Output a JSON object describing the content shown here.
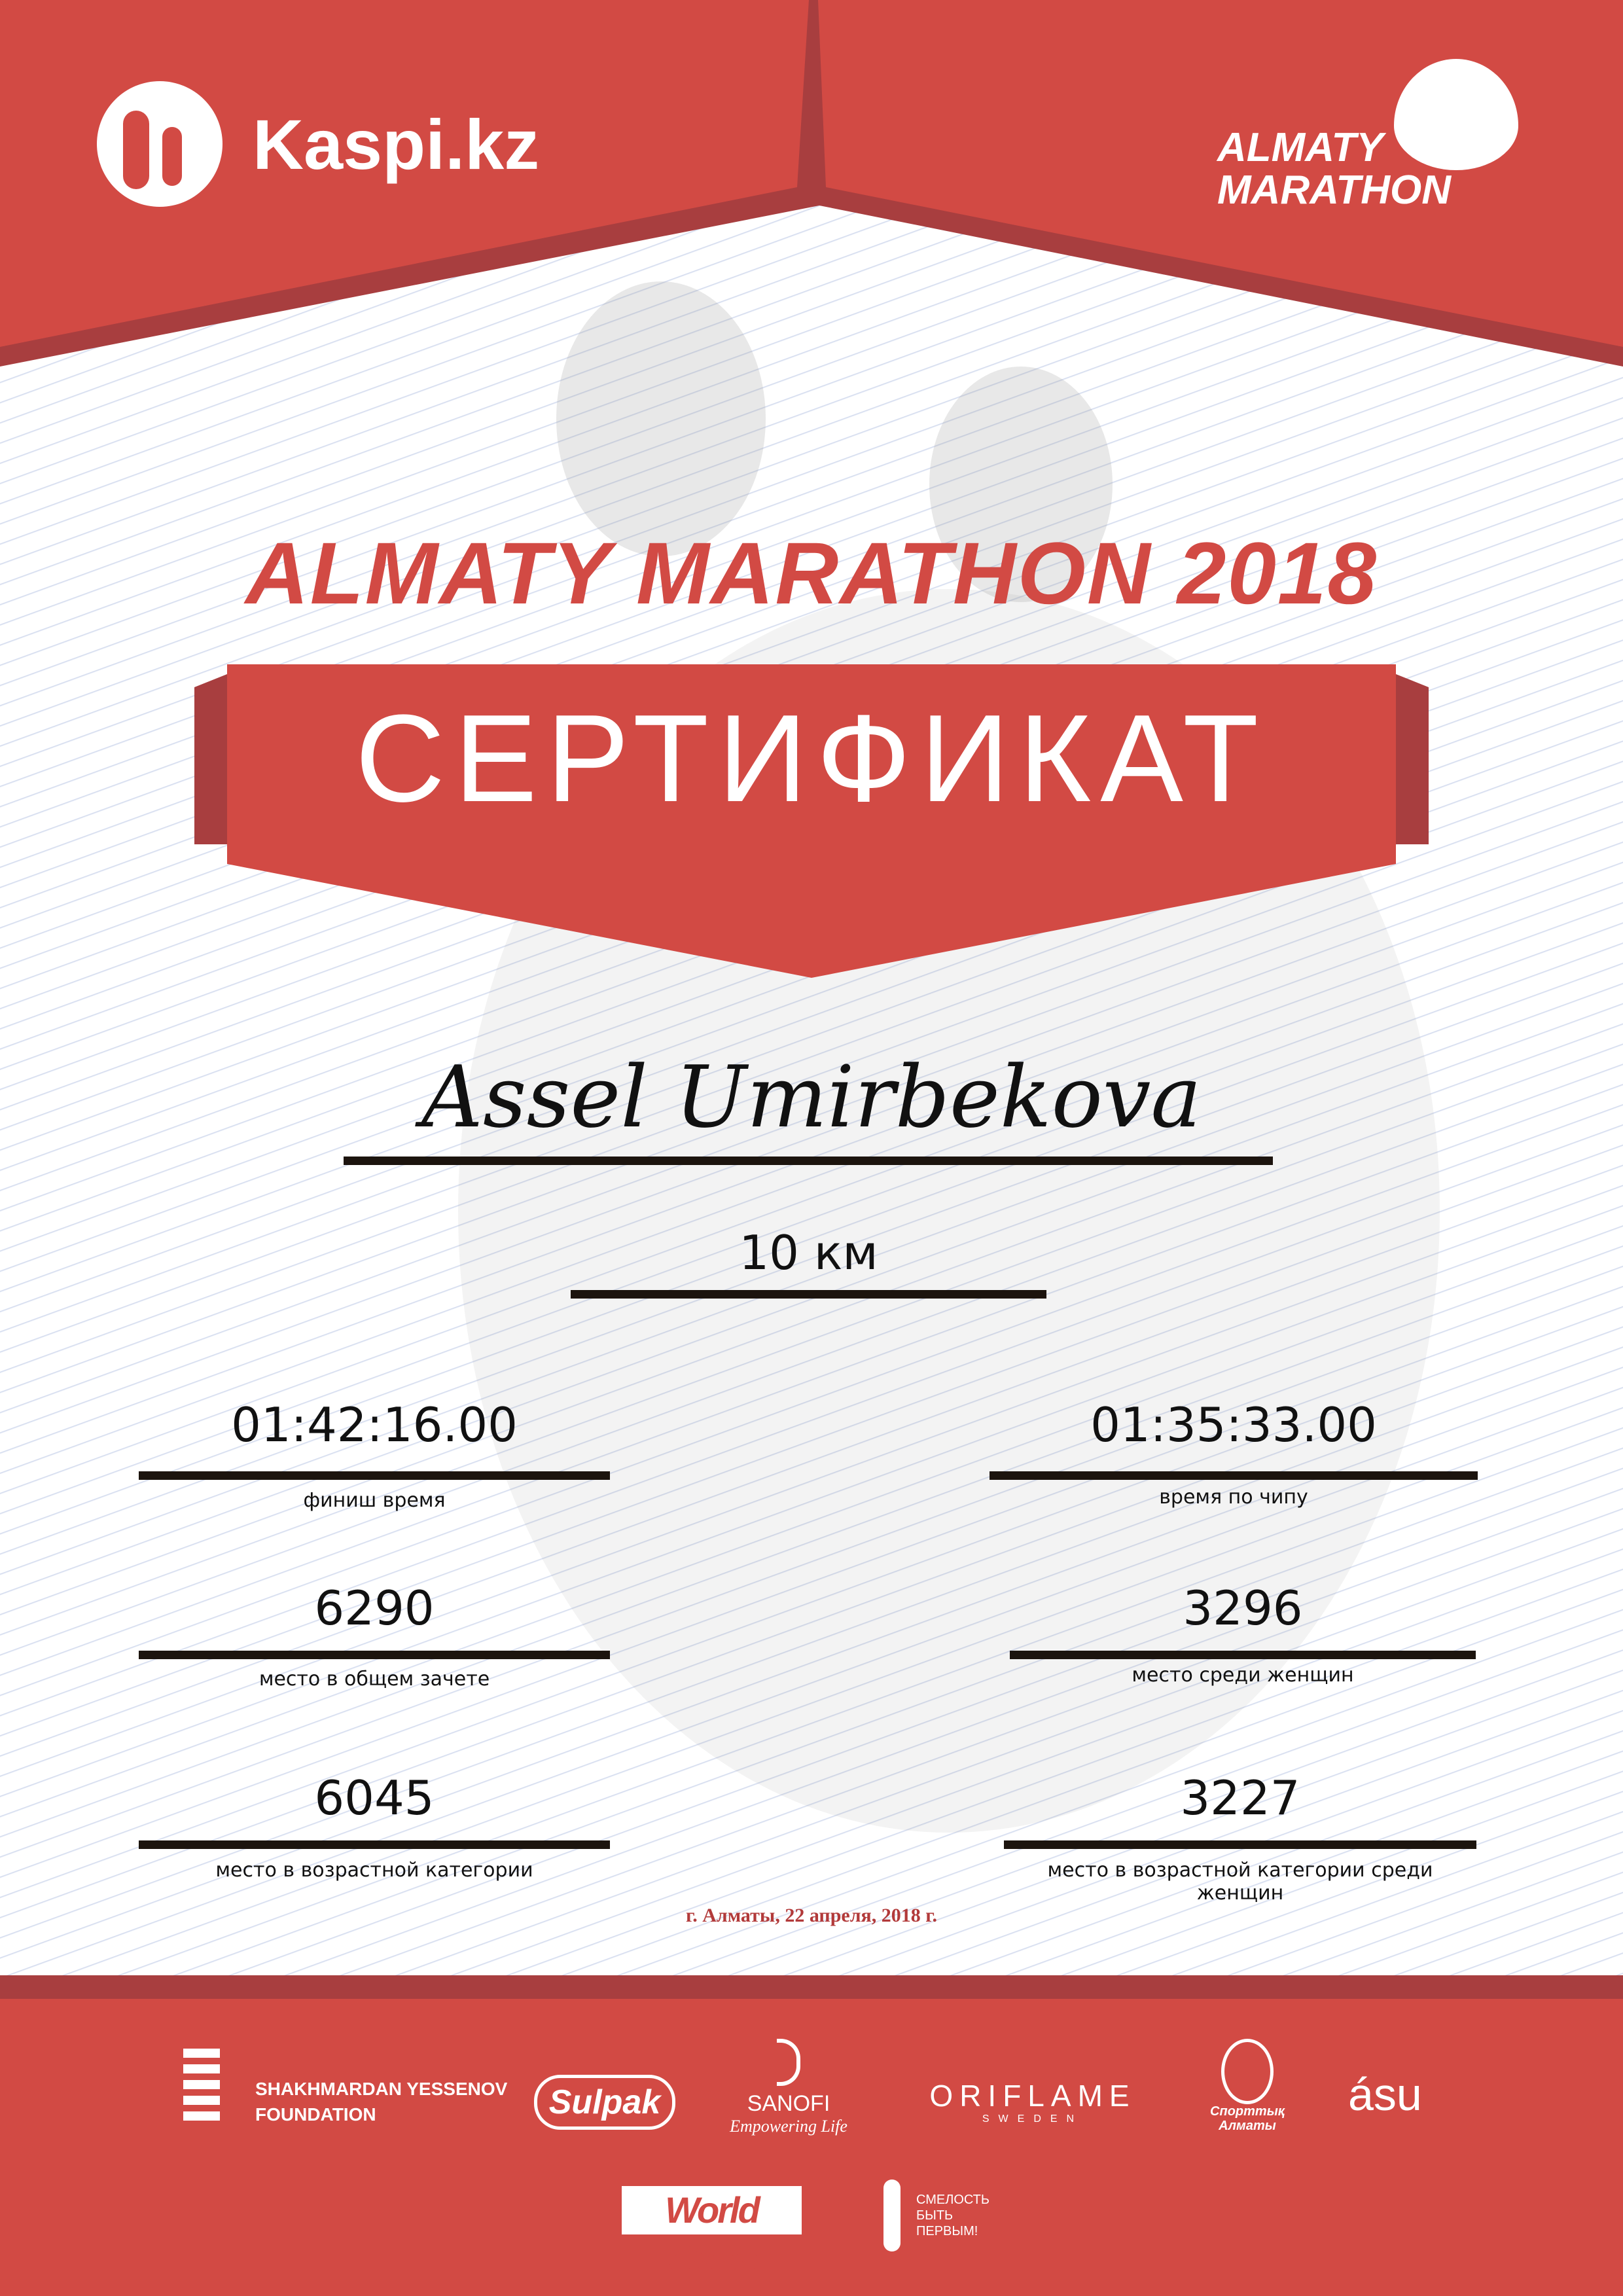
{
  "header": {
    "sponsor_logo": "Kaspi.kz",
    "event_logo_line1": "ALMATY",
    "event_logo_line2": "MARATHON"
  },
  "title": "ALMATY MARATHON 2018",
  "banner": "СЕРТИФИКАТ",
  "participant_name": "Assel Umirbekova",
  "distance": "10 км",
  "results": {
    "finish_time": {
      "value": "01:42:16.00",
      "label": "финиш время"
    },
    "chip_time": {
      "value": "01:35:33.00",
      "label": "время по чипу"
    },
    "overall_place": {
      "value": "6290",
      "label": "место в общем зачете"
    },
    "women_place": {
      "value": "3296",
      "label": "место среди женщин"
    },
    "age_place": {
      "value": "6045",
      "label": "место в возрастной категории"
    },
    "age_women_place": {
      "value": "3227",
      "label": "место в возрастной категории среди женщин"
    }
  },
  "date_place": "г. Алматы, 22 апреля, 2018 г.",
  "partners": {
    "yessenov_line1": "SHAKHMARDAN YESSENOV",
    "yessenov_line2": "FOUNDATION",
    "sulpak": "Sulpak",
    "sanofi": "SANOFI",
    "sanofi_tagline": "Empowering Life",
    "oriflame": "ORIFLAME",
    "oriflame_sub": "SWEDEN",
    "sportyk_almaty": "Спорттық Алматы",
    "asu": "ásu",
    "world_class": "World Class",
    "smelost_line1": "СМЕЛОСТЬ",
    "smelost_line2": "БЫТЬ",
    "smelost_line3": "ПЕРВЫМ!"
  },
  "colors": {
    "brand_red": "#d24a44",
    "dark_red": "#a83e3f"
  }
}
